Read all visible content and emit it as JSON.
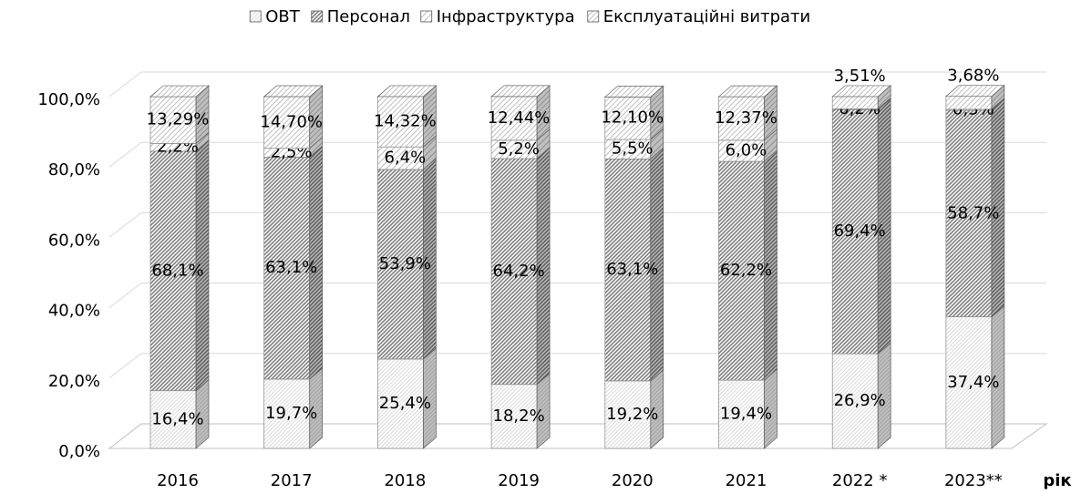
{
  "chart_data": {
    "type": "stacked_bar_3d",
    "categories": [
      "2016",
      "2017",
      "2018",
      "2019",
      "2020",
      "2021",
      "2022 *",
      "2023**"
    ],
    "x_label": "рік",
    "series": [
      {
        "name": "ОВТ",
        "color": "#d9d9d9",
        "values": [
          16.4,
          19.7,
          25.4,
          18.2,
          19.2,
          19.4,
          26.9,
          37.4
        ],
        "value_labels": [
          "16,4%",
          "19,7%",
          "25,4%",
          "18,2%",
          "19,2%",
          "19,4%",
          "26,9%",
          "37,4%"
        ]
      },
      {
        "name": "Персонал",
        "color": "#7f7f7f",
        "values": [
          68.1,
          63.1,
          53.9,
          64.2,
          63.1,
          62.2,
          69.4,
          58.7
        ],
        "value_labels": [
          "68,1%",
          "63,1%",
          "53,9%",
          "64,2%",
          "63,1%",
          "62,2%",
          "69,4%",
          "58,7%"
        ]
      },
      {
        "name": "Інфраструктура",
        "color": "#f2f2f2",
        "values": [
          2.2,
          2.5,
          6.4,
          5.2,
          5.5,
          6.0,
          0.2,
          0.3
        ],
        "value_labels": [
          "2,2%",
          "2,5%",
          "6,4%",
          "5,2%",
          "5,5%",
          "6,0%",
          "0,2%",
          "0,3%"
        ]
      },
      {
        "name": "Експлуатаційні витрати",
        "color": "#bfbfbf",
        "values": [
          13.29,
          14.7,
          14.32,
          12.44,
          12.1,
          12.37,
          3.51,
          3.68
        ],
        "value_labels": [
          "13,29%",
          "14,70%",
          "14,32%",
          "12,44%",
          "12,10%",
          "12,37%",
          "3,51%",
          "3,68%"
        ]
      }
    ],
    "ylim": [
      0,
      100
    ],
    "yticks": [
      {
        "value": 0,
        "label": "0,0%"
      },
      {
        "value": 20,
        "label": "20,0%"
      },
      {
        "value": 40,
        "label": "40,0%"
      },
      {
        "value": 60,
        "label": "60,0%"
      },
      {
        "value": 80,
        "label": "80,0%"
      },
      {
        "value": 100,
        "label": "100,0%"
      }
    ],
    "grid": true,
    "legend": "top"
  }
}
